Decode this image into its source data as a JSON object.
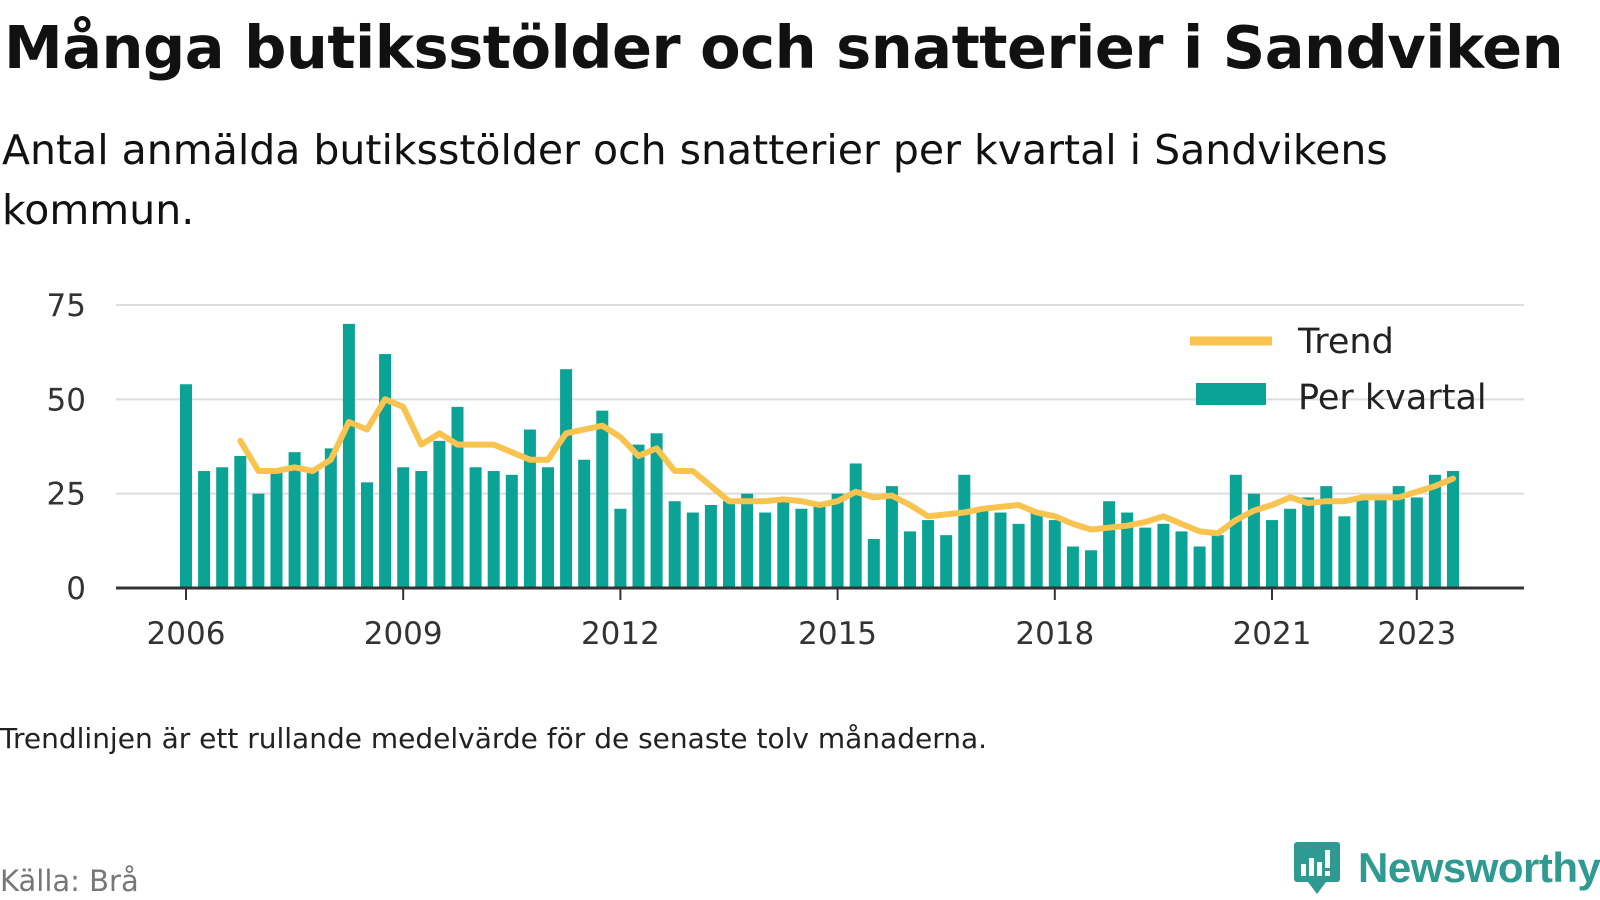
{
  "header": {
    "title": "Många butiksstölder och snatterier i Sandviken",
    "subtitle": "Antal anmälda butiksstölder och snatterier per kvartal i Sandvikens kommun."
  },
  "footer": {
    "note": "Trendlinjen är ett rullande medelvärde för de senaste tolv månaderna.",
    "source": "Källa: Brå",
    "brand": "Newsworthy",
    "brand_icon": "newsworthy-logo-icon"
  },
  "colors": {
    "bars": "#0aa396",
    "trend": "#f8c44f",
    "grid": "#dddddd",
    "axis": "#333333",
    "brand": "#2f9a92"
  },
  "chart_data": {
    "type": "bar",
    "title": "Många butiksstölder och snatterier i Sandviken",
    "subtitle": "Antal anmälda butiksstölder och snatterier per kvartal i Sandvikens kommun.",
    "xlabel": "",
    "ylabel": "",
    "ylim": [
      0,
      75
    ],
    "yticks": [
      0,
      25,
      50,
      75
    ],
    "xtick_labels": [
      "2006",
      "2009",
      "2012",
      "2015",
      "2018",
      "2021",
      "2023"
    ],
    "xtick_years": [
      2006,
      2009,
      2012,
      2015,
      2018,
      2021,
      2023
    ],
    "grid": true,
    "legend_position": "top-right",
    "first_period": "2006 Q1",
    "legend": [
      "Trend",
      "Per kvartal"
    ],
    "series": [
      {
        "name": "Per kvartal",
        "type": "bar",
        "values": [
          54,
          31,
          32,
          35,
          25,
          31,
          36,
          31,
          37,
          70,
          28,
          62,
          32,
          31,
          39,
          48,
          32,
          31,
          30,
          42,
          32,
          58,
          34,
          47,
          21,
          38,
          41,
          23,
          20,
          22,
          23,
          25,
          20,
          23,
          21,
          22,
          25,
          33,
          13,
          27,
          15,
          18,
          14,
          30,
          21,
          20,
          17,
          20,
          18,
          11,
          10,
          23,
          20,
          16,
          17,
          15,
          11,
          14,
          30,
          25,
          18,
          21,
          24,
          27,
          19,
          24,
          24,
          27,
          24,
          30,
          31
        ]
      },
      {
        "name": "Trend",
        "type": "line",
        "start_index": 3,
        "values": [
          39,
          31,
          31,
          32,
          31,
          34,
          44,
          42,
          50,
          48,
          38,
          41,
          38,
          38,
          38,
          36,
          34,
          34,
          41,
          42,
          43,
          40,
          35,
          37,
          31,
          31,
          27,
          23,
          23,
          23,
          23.5,
          23,
          22,
          23,
          25.5,
          24,
          24.5,
          22,
          19,
          19.5,
          20,
          21,
          21.5,
          22,
          20,
          19,
          17,
          15.5,
          16,
          16.5,
          17.5,
          19,
          17,
          15,
          14.5,
          18,
          20.5,
          22,
          24,
          22.5,
          23,
          23,
          24,
          24,
          24,
          25.5,
          27,
          29
        ]
      }
    ]
  }
}
